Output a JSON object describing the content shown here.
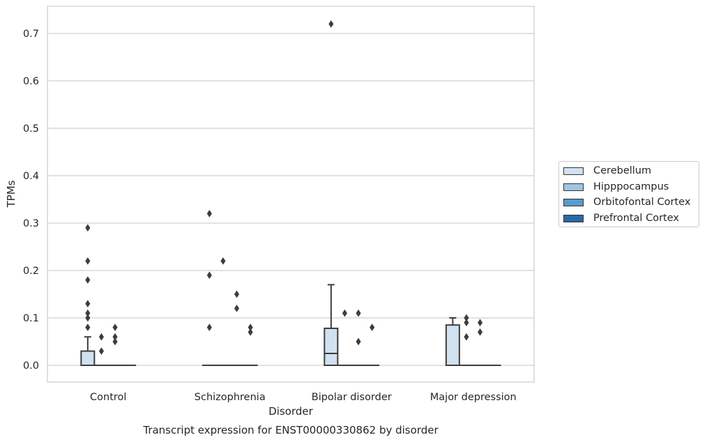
{
  "chart_data": {
    "type": "box",
    "title": "Transcript expression for ENST00000330862 by disorder",
    "xlabel": "Disorder",
    "ylabel": "TPMs",
    "ylim": [
      -0.035,
      0.76
    ],
    "yticks": [
      "0.0",
      "0.1",
      "0.2",
      "0.3",
      "0.4",
      "0.5",
      "0.6",
      "0.7"
    ],
    "grid": true,
    "legend_position": "right",
    "categories": [
      "Control",
      "Schizophrenia",
      "Bipolar disorder",
      "Major depression"
    ],
    "series": [
      {
        "name": "Cerebellum",
        "color": "#d1e1f0",
        "boxes": [
          {
            "q1": 0.0,
            "median": 0.0,
            "q3": 0.03,
            "whisker_low": 0.0,
            "whisker_high": 0.06,
            "outliers": [
              0.08,
              0.1,
              0.11,
              0.13,
              0.18,
              0.22,
              0.29
            ]
          },
          {
            "q1": 0.0,
            "median": 0.0,
            "q3": 0.0,
            "whisker_low": 0.0,
            "whisker_high": 0.0,
            "outliers": [
              0.08,
              0.19,
              0.32
            ]
          },
          {
            "q1": 0.0,
            "median": 0.025,
            "q3": 0.078,
            "whisker_low": 0.0,
            "whisker_high": 0.17,
            "outliers": [
              0.72
            ]
          },
          {
            "q1": 0.0,
            "median": 0.0,
            "q3": 0.085,
            "whisker_low": 0.0,
            "whisker_high": 0.1,
            "outliers": []
          }
        ]
      },
      {
        "name": "Hipppocampus",
        "color": "#9fc6e0",
        "boxes": [
          {
            "q1": 0.0,
            "median": 0.0,
            "q3": 0.0,
            "whisker_low": 0.0,
            "whisker_high": 0.0,
            "outliers": [
              0.03,
              0.06
            ]
          },
          {
            "q1": 0.0,
            "median": 0.0,
            "q3": 0.0,
            "whisker_low": 0.0,
            "whisker_high": 0.0,
            "outliers": [
              0.22
            ]
          },
          {
            "q1": 0.0,
            "median": 0.0,
            "q3": 0.0,
            "whisker_low": 0.0,
            "whisker_high": 0.0,
            "outliers": [
              0.11
            ]
          },
          {
            "q1": 0.0,
            "median": 0.0,
            "q3": 0.0,
            "whisker_low": 0.0,
            "whisker_high": 0.0,
            "outliers": [
              0.06,
              0.09,
              0.1
            ]
          }
        ]
      },
      {
        "name": "Orbitofontal Cortex",
        "color": "#5a9bc9",
        "boxes": [
          {
            "q1": 0.0,
            "median": 0.0,
            "q3": 0.0,
            "whisker_low": 0.0,
            "whisker_high": 0.0,
            "outliers": [
              0.05,
              0.06,
              0.08
            ]
          },
          {
            "q1": 0.0,
            "median": 0.0,
            "q3": 0.0,
            "whisker_low": 0.0,
            "whisker_high": 0.0,
            "outliers": [
              0.12,
              0.15
            ]
          },
          {
            "q1": 0.0,
            "median": 0.0,
            "q3": 0.0,
            "whisker_low": 0.0,
            "whisker_high": 0.0,
            "outliers": [
              0.05,
              0.11
            ]
          },
          {
            "q1": 0.0,
            "median": 0.0,
            "q3": 0.0,
            "whisker_low": 0.0,
            "whisker_high": 0.0,
            "outliers": [
              0.07,
              0.09
            ]
          }
        ]
      },
      {
        "name": "Prefrontal Cortex",
        "color": "#2a68a6",
        "boxes": [
          {
            "q1": 0.0,
            "median": 0.0,
            "q3": 0.0,
            "whisker_low": 0.0,
            "whisker_high": 0.0,
            "outliers": []
          },
          {
            "q1": 0.0,
            "median": 0.0,
            "q3": 0.0,
            "whisker_low": 0.0,
            "whisker_high": 0.0,
            "outliers": [
              0.07,
              0.08
            ]
          },
          {
            "q1": 0.0,
            "median": 0.0,
            "q3": 0.0,
            "whisker_low": 0.0,
            "whisker_high": 0.0,
            "outliers": [
              0.08
            ]
          },
          {
            "q1": 0.0,
            "median": 0.0,
            "q3": 0.0,
            "whisker_low": 0.0,
            "whisker_high": 0.0,
            "outliers": []
          }
        ]
      }
    ]
  }
}
